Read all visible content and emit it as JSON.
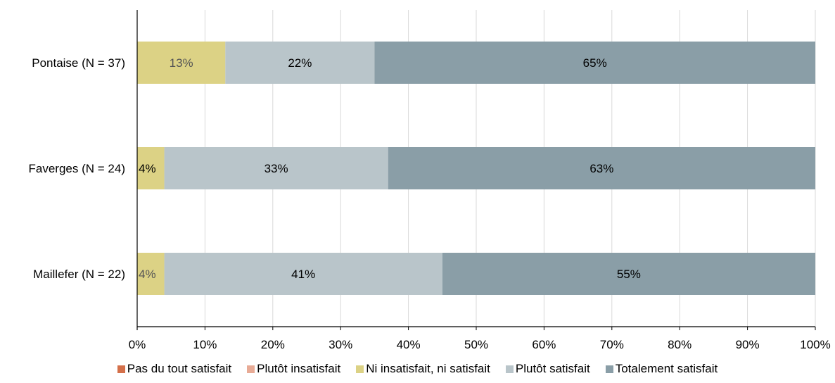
{
  "chart_data": {
    "type": "bar",
    "orientation": "horizontal",
    "stacked": true,
    "categories": [
      "Pontaise (N = 37)",
      "Faverges (N = 24)",
      "Maillefer (N = 22)"
    ],
    "series": [
      {
        "name": "Pas du tout satisfait",
        "color": "#d4704a",
        "values": [
          0,
          0,
          0
        ],
        "labels": [
          "",
          "",
          ""
        ]
      },
      {
        "name": "Plutôt insatisfait",
        "color": "#e8ab96",
        "values": [
          0,
          0,
          0
        ],
        "labels": [
          "",
          "",
          ""
        ]
      },
      {
        "name": "Ni insatisfait, ni satisfait",
        "color": "#dcd285",
        "values": [
          13,
          4,
          4
        ],
        "labels": [
          "13%",
          "4%",
          "4%"
        ],
        "label_color": [
          "#555555",
          "#000000",
          "#555555"
        ]
      },
      {
        "name": "Plutôt satisfait",
        "color": "#b9c5ca",
        "values": [
          22,
          33,
          41
        ],
        "labels": [
          "22%",
          "33%",
          "41%"
        ],
        "label_color": [
          "#000000",
          "#000000",
          "#000000"
        ]
      },
      {
        "name": "Totalement satisfait",
        "color": "#8a9ea7",
        "values": [
          65,
          63,
          55
        ],
        "labels": [
          "65%",
          "63%",
          "55%"
        ],
        "label_color": [
          "#000000",
          "#000000",
          "#000000"
        ]
      }
    ],
    "xticks": [
      "0%",
      "10%",
      "20%",
      "30%",
      "40%",
      "50%",
      "60%",
      "70%",
      "80%",
      "90%",
      "100%"
    ],
    "xlim": [
      0,
      100
    ],
    "grid": true,
    "legend_position": "bottom"
  }
}
